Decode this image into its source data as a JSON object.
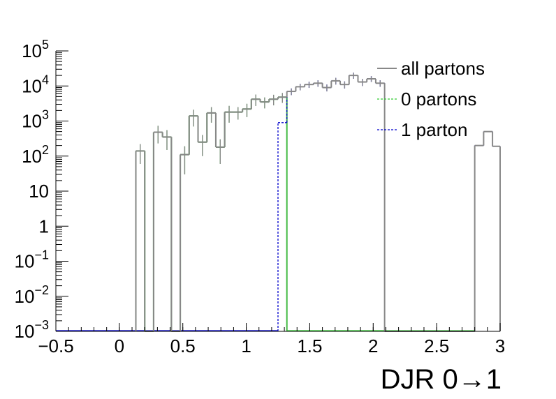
{
  "chart_data": {
    "type": "histogram",
    "xlabel": "DJR 0→1",
    "ylabel": "",
    "xlim": [
      -0.5,
      3.0
    ],
    "ylim": [
      0.001,
      100000
    ],
    "yscale": "log",
    "grid": false,
    "x_ticks": [
      {
        "value": -0.5,
        "label": "−0.5"
      },
      {
        "value": 0,
        "label": "0"
      },
      {
        "value": 0.5,
        "label": "0.5"
      },
      {
        "value": 1,
        "label": "1"
      },
      {
        "value": 1.5,
        "label": "1.5"
      },
      {
        "value": 2,
        "label": "2"
      },
      {
        "value": 2.5,
        "label": "2.5"
      },
      {
        "value": 3,
        "label": "3"
      }
    ],
    "y_ticks": [
      {
        "value": 0.001,
        "base": "10",
        "exp": "−3"
      },
      {
        "value": 0.01,
        "base": "10",
        "exp": "−2"
      },
      {
        "value": 0.1,
        "base": "10",
        "exp": "−1"
      },
      {
        "value": 1,
        "base": "1",
        "exp": ""
      },
      {
        "value": 10,
        "base": "10",
        "exp": ""
      },
      {
        "value": 100,
        "base": "10",
        "exp": "2"
      },
      {
        "value": 1000,
        "base": "10",
        "exp": "3"
      },
      {
        "value": 10000,
        "base": "10",
        "exp": "4"
      },
      {
        "value": 100000,
        "base": "10",
        "exp": "5"
      }
    ],
    "legend": {
      "position": "top-right",
      "entries": [
        {
          "label": "all partons",
          "color": "#888888",
          "style": "solid"
        },
        {
          "label": "0 partons",
          "color": "#33cc33",
          "style": "dashed"
        },
        {
          "label": "1 parton",
          "color": "#0000cc",
          "style": "dashed"
        }
      ]
    },
    "series": [
      {
        "key": "all",
        "color": "#888888",
        "style": "solid",
        "bins": [
          [
            0.13,
            0.2,
            140,
            80
          ],
          [
            0.2,
            0.27,
            0.001,
            0
          ],
          [
            0.27,
            0.34,
            480,
            250
          ],
          [
            0.34,
            0.41,
            350,
            200
          ],
          [
            0.41,
            0.48,
            0.001,
            0
          ],
          [
            0.48,
            0.55,
            110,
            80
          ],
          [
            0.55,
            0.62,
            1400,
            700
          ],
          [
            0.62,
            0.69,
            250,
            150
          ],
          [
            0.69,
            0.76,
            1700,
            800
          ],
          [
            0.76,
            0.83,
            180,
            120
          ],
          [
            0.83,
            0.9,
            1800,
            900
          ],
          [
            0.9,
            0.97,
            1800,
            700
          ],
          [
            0.97,
            1.04,
            2200,
            900
          ],
          [
            1.04,
            1.11,
            4200,
            1500
          ],
          [
            1.11,
            1.18,
            3500,
            1200
          ],
          [
            1.18,
            1.25,
            4200,
            1400
          ],
          [
            1.25,
            1.32,
            4800,
            1500
          ],
          [
            1.32,
            1.39,
            7000,
            1500
          ],
          [
            1.39,
            1.46,
            9500,
            2000
          ],
          [
            1.46,
            1.53,
            11000,
            2200
          ],
          [
            1.53,
            1.6,
            12000,
            2500
          ],
          [
            1.6,
            1.67,
            9000,
            2000
          ],
          [
            1.67,
            1.74,
            14000,
            3000
          ],
          [
            1.74,
            1.81,
            11000,
            2500
          ],
          [
            1.81,
            1.88,
            20000,
            4000
          ],
          [
            1.88,
            1.95,
            13000,
            3000
          ],
          [
            1.95,
            2.02,
            16000,
            3000
          ],
          [
            2.02,
            2.09,
            12000,
            2500
          ],
          [
            2.09,
            2.8,
            0.001,
            0
          ],
          [
            2.8,
            2.87,
            200,
            0
          ],
          [
            2.87,
            2.94,
            500,
            0
          ],
          [
            2.94,
            3.0,
            190,
            0
          ]
        ]
      },
      {
        "key": "zero",
        "color": "#44bb44",
        "style": "solid",
        "bins": [
          [
            0.13,
            0.2,
            140,
            80
          ],
          [
            0.2,
            0.27,
            0.001,
            0
          ],
          [
            0.27,
            0.34,
            480,
            250
          ],
          [
            0.34,
            0.41,
            350,
            200
          ],
          [
            0.41,
            0.48,
            0.001,
            0
          ],
          [
            0.48,
            0.55,
            110,
            80
          ],
          [
            0.55,
            0.62,
            1400,
            700
          ],
          [
            0.62,
            0.69,
            250,
            150
          ],
          [
            0.69,
            0.76,
            1700,
            800
          ],
          [
            0.76,
            0.83,
            180,
            120
          ],
          [
            0.83,
            0.9,
            1800,
            900
          ],
          [
            0.9,
            0.97,
            1800,
            700
          ],
          [
            0.97,
            1.04,
            2200,
            900
          ],
          [
            1.04,
            1.11,
            4200,
            1500
          ],
          [
            1.11,
            1.18,
            3500,
            1200
          ],
          [
            1.18,
            1.25,
            4200,
            1400
          ],
          [
            1.25,
            1.32,
            4800,
            1500
          ]
        ]
      },
      {
        "key": "one",
        "color": "#0000cc",
        "style": "dashed",
        "bins": [
          [
            1.25,
            1.32,
            900,
            0
          ],
          [
            1.32,
            1.39,
            7000,
            1500
          ],
          [
            1.39,
            1.46,
            9500,
            2000
          ],
          [
            1.46,
            1.53,
            11000,
            2200
          ],
          [
            1.53,
            1.6,
            12000,
            2500
          ],
          [
            1.6,
            1.67,
            9000,
            2000
          ],
          [
            1.67,
            1.74,
            14000,
            3000
          ],
          [
            1.74,
            1.81,
            11000,
            2500
          ],
          [
            1.81,
            1.88,
            20000,
            4000
          ],
          [
            1.88,
            1.95,
            13000,
            3000
          ],
          [
            1.95,
            2.02,
            16000,
            3000
          ],
          [
            2.02,
            2.09,
            12000,
            2500
          ],
          [
            2.09,
            2.8,
            0.001,
            0
          ],
          [
            2.8,
            2.87,
            200,
            0
          ],
          [
            2.87,
            2.94,
            500,
            0
          ],
          [
            2.94,
            3.0,
            190,
            0
          ]
        ]
      }
    ],
    "zero_floor": [
      {
        "x_from": -0.5,
        "x_to": 1.25,
        "color": "#0000cc"
      },
      {
        "x_from": 1.32,
        "x_to": 2.8,
        "color": "#33cc33"
      }
    ]
  }
}
